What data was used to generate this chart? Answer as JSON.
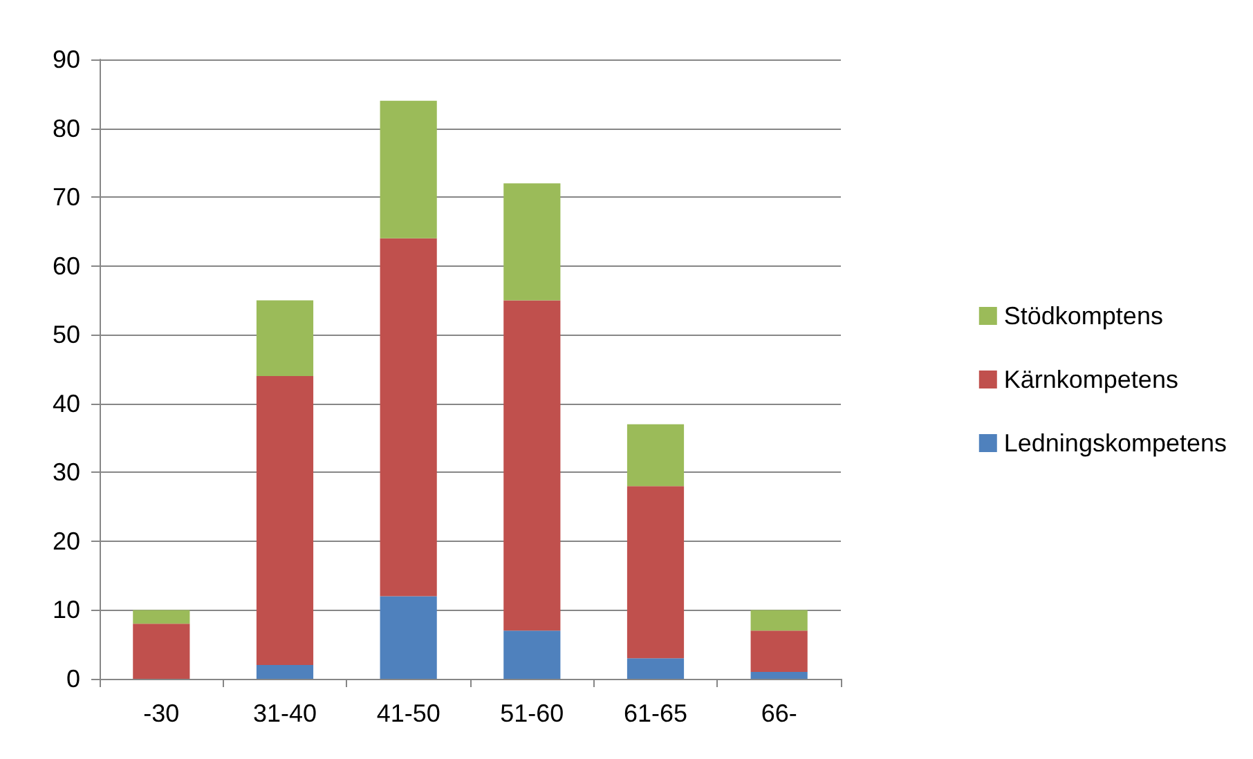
{
  "chart_data": {
    "type": "bar",
    "stacked": true,
    "categories": [
      "-30",
      "31-40",
      "41-50",
      "51-60",
      "61-65",
      "66-"
    ],
    "series": [
      {
        "name": "Ledningskompetens",
        "color": "#4f81bd",
        "values": [
          0,
          2,
          12,
          7,
          3,
          1
        ]
      },
      {
        "name": "Kärnkompetens",
        "color": "#c0504d",
        "values": [
          8,
          42,
          52,
          48,
          25,
          6
        ]
      },
      {
        "name": "Stödkomptens",
        "color": "#9bbb59",
        "values": [
          2,
          11,
          20,
          17,
          9,
          3
        ]
      }
    ],
    "ylim": [
      0,
      90
    ],
    "yticks": [
      0,
      10,
      20,
      30,
      40,
      50,
      60,
      70,
      80,
      90
    ],
    "grid": "y",
    "legend": "right"
  }
}
